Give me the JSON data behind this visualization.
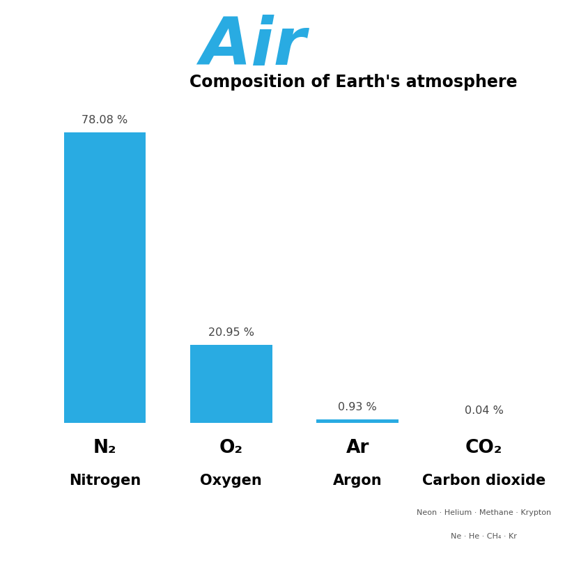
{
  "title_air": "Air",
  "title_sub": "Composition of Earth's atmosphere",
  "bar_color": "#29ABE2",
  "bar_color_light": "#A8D8EA",
  "values": [
    78.08,
    20.95,
    0.93,
    0.04
  ],
  "value_labels": [
    "78.08 %",
    "20.95 %",
    "0.93 %",
    "0.04 %"
  ],
  "symbol_labels": [
    "N₂",
    "O₂",
    "Ar",
    "CO₂"
  ],
  "name_labels": [
    "Nitrogen",
    "Oxygen",
    "Argon",
    "Carbon dioxide"
  ],
  "extra_line1": "Neon · Helium · Methane · Krypton",
  "extra_line2": "Ne · He · CH₄ · Kr",
  "background_color": "#ffffff"
}
